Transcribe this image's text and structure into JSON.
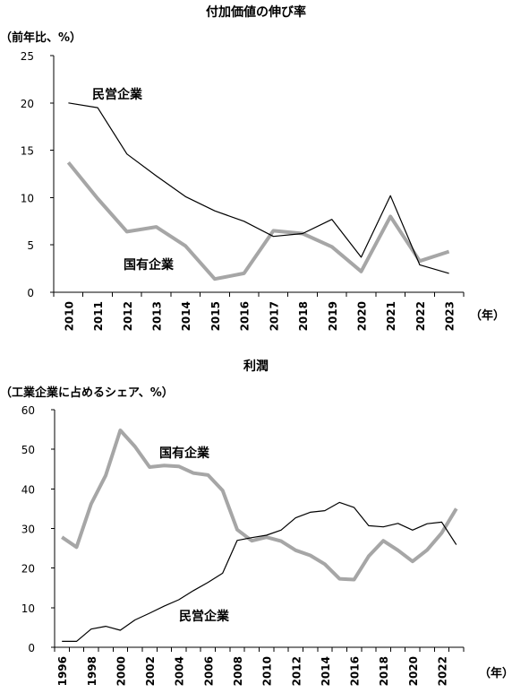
{
  "chart_data": [
    {
      "type": "line",
      "title": "付加価値の伸び率",
      "ylabel": "（前年比、%）",
      "xunit": "（年）",
      "ylim": [
        0,
        25
      ],
      "yticks": [
        0,
        5,
        10,
        15,
        20,
        25
      ],
      "x": [
        "2010",
        "2011",
        "2012",
        "2013",
        "2014",
        "2015",
        "2016",
        "2017",
        "2018",
        "2019",
        "2020",
        "2021",
        "2022",
        "2023"
      ],
      "grid": false,
      "series": [
        {
          "name": "民営企業",
          "color": "#000000",
          "width": 1.2,
          "values": [
            20.0,
            19.5,
            14.6,
            12.3,
            10.1,
            8.6,
            7.5,
            5.9,
            6.2,
            7.7,
            3.7,
            10.2,
            2.9,
            2.0
          ]
        },
        {
          "name": "国有企業",
          "color": "#a6a6a6",
          "width": 4,
          "values": [
            13.7,
            9.9,
            6.4,
            6.9,
            4.9,
            1.4,
            2.0,
            6.5,
            6.2,
            4.8,
            2.2,
            8.0,
            3.3,
            4.3
          ]
        }
      ]
    },
    {
      "type": "line",
      "title": "利潤",
      "ylabel": "（工業企業に占めるシェア、%）",
      "xunit": "（年）",
      "ylim": [
        0,
        60
      ],
      "yticks": [
        0,
        10,
        20,
        30,
        40,
        50,
        60
      ],
      "xstart": 1996,
      "xend": 2023,
      "xticklabels": [
        "1996",
        "1998",
        "2000",
        "2002",
        "2004",
        "2006",
        "2008",
        "2010",
        "2012",
        "2014",
        "2016",
        "2018",
        "2020",
        "2022"
      ],
      "grid": false,
      "series": [
        {
          "name": "国有企業",
          "color": "#a6a6a6",
          "width": 4,
          "values": [
            27.8,
            25.3,
            36.2,
            43.4,
            54.8,
            50.7,
            45.5,
            45.9,
            45.7,
            44.0,
            43.5,
            39.6,
            29.7,
            26.9,
            27.8,
            26.8,
            24.5,
            23.2,
            21.0,
            17.3,
            17.1,
            23.0,
            26.9,
            24.5,
            21.7,
            24.6,
            28.9,
            35.0
          ]
        },
        {
          "name": "民営企業",
          "color": "#000000",
          "width": 1.2,
          "values": [
            1.5,
            1.5,
            4.6,
            5.3,
            4.3,
            6.9,
            8.6,
            10.4,
            12.0,
            14.3,
            16.4,
            18.7,
            27.0,
            27.7,
            28.3,
            29.6,
            32.7,
            34.1,
            34.5,
            36.6,
            35.3,
            30.7,
            30.4,
            31.3,
            29.6,
            31.2,
            31.6,
            25.9
          ]
        }
      ]
    }
  ]
}
